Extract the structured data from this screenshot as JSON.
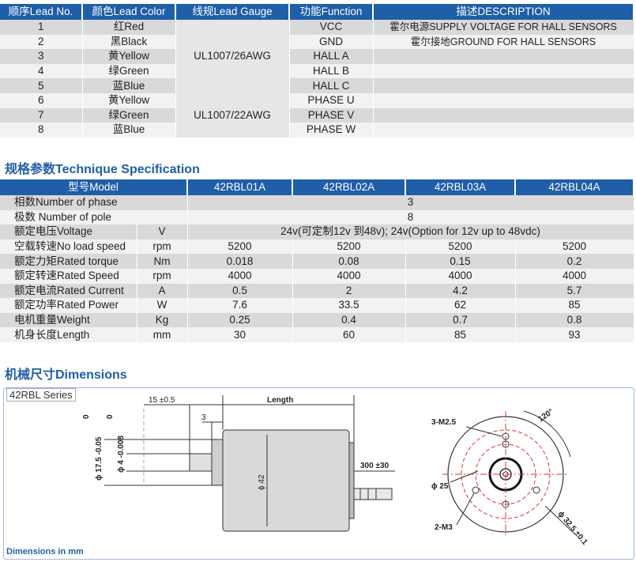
{
  "lead_table": {
    "headers": [
      "顺序Lead No.",
      "颜色Lead Color",
      "线规Lead Gauge",
      "功能Function",
      "描述DESCRIPTION"
    ],
    "rows": [
      {
        "no": "1",
        "color": "红Red",
        "function": "VCC",
        "desc": "霍尔电源SUPPLY VOLTAGE FOR HALL SENSORS"
      },
      {
        "no": "2",
        "color": "黑Black",
        "function": "GND",
        "desc": "霍尔接地GROUND FOR HALL SENSORS"
      },
      {
        "no": "3",
        "color": "黄Yellow",
        "function": "HALL A",
        "desc": ""
      },
      {
        "no": "4",
        "color": "绿Green",
        "function": "HALL B",
        "desc": ""
      },
      {
        "no": "5",
        "color": "蓝Blue",
        "function": "HALL C",
        "desc": ""
      },
      {
        "no": "6",
        "color": "黄Yellow",
        "function": "PHASE U",
        "desc": ""
      },
      {
        "no": "7",
        "color": "绿Green",
        "function": "PHASE V",
        "desc": ""
      },
      {
        "no": "8",
        "color": "蓝Blue",
        "function": "PHASE W",
        "desc": ""
      }
    ],
    "gauge_hall": "UL1007/26AWG",
    "gauge_phase": "UL1007/22AWG"
  },
  "spec_section": {
    "title": "规格参数Technique Specification",
    "header_model": "型号Model",
    "models": [
      "42RBL01A",
      "42RBL02A",
      "42RBL03A",
      "42RBL04A"
    ],
    "phase": {
      "label": "相数Number of phase",
      "value": "3"
    },
    "pole": {
      "label": "极数 Number of pole",
      "value": "8"
    },
    "voltage": {
      "label": "额定电压Voltage",
      "unit": "V",
      "value": "24v(可定制12v 到48v); 24v(Option for 12v up to 48vdc)"
    },
    "rows": [
      {
        "label": "空载转速No load speed",
        "unit": "rpm",
        "values": [
          "5200",
          "5200",
          "5200",
          "5200"
        ]
      },
      {
        "label": "额定力矩Rated torque",
        "unit": "Nm",
        "values": [
          "0.018",
          "0.08",
          "0.15",
          "0.2"
        ]
      },
      {
        "label": "额定转速Rated Speed",
        "unit": "rpm",
        "values": [
          "4000",
          "4000",
          "4000",
          "4000"
        ]
      },
      {
        "label": "额定电流Rated Current",
        "unit": "A",
        "values": [
          "0.5",
          "2",
          "4.2",
          "5.7"
        ]
      },
      {
        "label": "额定功率Rated Power",
        "unit": "W",
        "values": [
          "7.6",
          "33.5",
          "62",
          "85"
        ]
      },
      {
        "label": "电机重量Weight",
        "unit": "Kg",
        "values": [
          "0.25",
          "0.4",
          "0.7",
          "0.8"
        ]
      },
      {
        "label": "机身长度Length",
        "unit": "mm",
        "values": [
          "30",
          "60",
          "85",
          "93"
        ]
      }
    ]
  },
  "dimensions": {
    "title": "机械尺寸Dimensions",
    "series_label": "42RBL Series",
    "note": "Dimensions in mm",
    "labels": {
      "shaft_len": "15 ±0.5",
      "step": "3",
      "length": "Length",
      "pilot_dia": "ϕ 17.5 -0.05",
      "pilot_tol_top": "0",
      "shaft_dia": "ϕ 4 -0.008",
      "shaft_tol_top": "0",
      "body_dia": "ϕ 42",
      "lead_len": "300 ±30",
      "holes_top": "3-M2.5",
      "angle": "120°",
      "inner_dia": "ϕ 25",
      "holes_bottom": "2-M3",
      "pcd": "ϕ 32.5 ±0.1"
    }
  }
}
